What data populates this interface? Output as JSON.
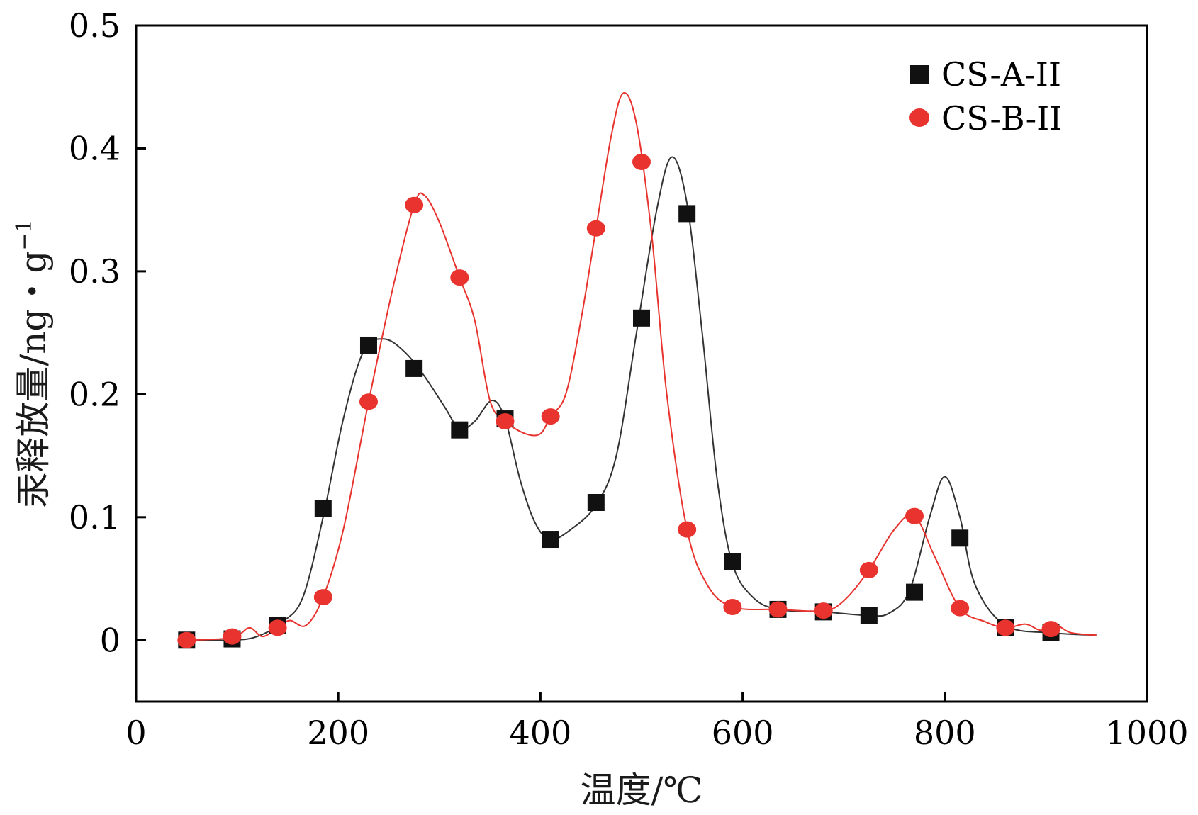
{
  "chart_data": {
    "type": "line",
    "title": "",
    "xlabel": "温度/℃",
    "ylabel_main": "汞释放量/ng・g",
    "ylabel_sup": "−1",
    "xlim": [
      0,
      1000
    ],
    "ylim": [
      -0.05,
      0.5
    ],
    "xticks": [
      0,
      200,
      400,
      600,
      800,
      1000
    ],
    "xtick_labels": [
      "0",
      "200",
      "400",
      "600",
      "800",
      "1000"
    ],
    "yticks": [
      0,
      0.1,
      0.2,
      0.3,
      0.4,
      0.5
    ],
    "ytick_labels": [
      "0",
      "0.1",
      "0.2",
      "0.3",
      "0.4",
      "0.5"
    ],
    "grid": false,
    "legend_position": "top-right",
    "series": [
      {
        "name": "CS-A-II",
        "marker": "square",
        "color": "#111111",
        "line_color": "#333333",
        "points": [
          [
            50,
            0.0
          ],
          [
            95,
            0.001
          ],
          [
            140,
            0.012
          ],
          [
            185,
            0.107
          ],
          [
            230,
            0.24
          ],
          [
            275,
            0.221
          ],
          [
            320,
            0.171
          ],
          [
            365,
            0.18
          ],
          [
            410,
            0.082
          ],
          [
            455,
            0.112
          ],
          [
            500,
            0.262
          ],
          [
            545,
            0.347
          ],
          [
            590,
            0.064
          ],
          [
            635,
            0.025
          ],
          [
            680,
            0.023
          ],
          [
            725,
            0.02
          ],
          [
            770,
            0.039
          ],
          [
            815,
            0.083
          ],
          [
            860,
            0.01
          ],
          [
            905,
            0.006
          ]
        ],
        "curve": [
          [
            50,
            0.0
          ],
          [
            95,
            0.0
          ],
          [
            120,
            0.003
          ],
          [
            145,
            0.015
          ],
          [
            165,
            0.035
          ],
          [
            185,
            0.1
          ],
          [
            205,
            0.18
          ],
          [
            225,
            0.235
          ],
          [
            245,
            0.245
          ],
          [
            265,
            0.235
          ],
          [
            285,
            0.215
          ],
          [
            305,
            0.19
          ],
          [
            320,
            0.172
          ],
          [
            335,
            0.178
          ],
          [
            352,
            0.195
          ],
          [
            365,
            0.18
          ],
          [
            380,
            0.13
          ],
          [
            395,
            0.095
          ],
          [
            410,
            0.082
          ],
          [
            430,
            0.09
          ],
          [
            455,
            0.11
          ],
          [
            475,
            0.15
          ],
          [
            495,
            0.25
          ],
          [
            515,
            0.35
          ],
          [
            530,
            0.393
          ],
          [
            545,
            0.355
          ],
          [
            560,
            0.25
          ],
          [
            575,
            0.13
          ],
          [
            590,
            0.062
          ],
          [
            610,
            0.035
          ],
          [
            635,
            0.025
          ],
          [
            680,
            0.023
          ],
          [
            725,
            0.02
          ],
          [
            745,
            0.022
          ],
          [
            765,
            0.04
          ],
          [
            785,
            0.1
          ],
          [
            800,
            0.133
          ],
          [
            815,
            0.1
          ],
          [
            830,
            0.045
          ],
          [
            860,
            0.012
          ],
          [
            905,
            0.006
          ],
          [
            950,
            0.004
          ]
        ]
      },
      {
        "name": "CS-B-II",
        "marker": "circle",
        "color": "#e8332e",
        "line_color": "#e8332e",
        "points": [
          [
            50,
            0.0
          ],
          [
            95,
            0.003
          ],
          [
            140,
            0.01
          ],
          [
            185,
            0.035
          ],
          [
            230,
            0.194
          ],
          [
            275,
            0.354
          ],
          [
            320,
            0.295
          ],
          [
            365,
            0.178
          ],
          [
            410,
            0.182
          ],
          [
            455,
            0.335
          ],
          [
            500,
            0.389
          ],
          [
            545,
            0.09
          ],
          [
            590,
            0.027
          ],
          [
            635,
            0.025
          ],
          [
            680,
            0.024
          ],
          [
            725,
            0.057
          ],
          [
            770,
            0.101
          ],
          [
            815,
            0.026
          ],
          [
            860,
            0.01
          ],
          [
            905,
            0.009
          ]
        ],
        "curve": [
          [
            50,
            0.0
          ],
          [
            95,
            0.002
          ],
          [
            112,
            0.01
          ],
          [
            125,
            0.003
          ],
          [
            140,
            0.01
          ],
          [
            152,
            0.016
          ],
          [
            168,
            0.012
          ],
          [
            185,
            0.035
          ],
          [
            205,
            0.09
          ],
          [
            230,
            0.194
          ],
          [
            255,
            0.29
          ],
          [
            275,
            0.354
          ],
          [
            285,
            0.362
          ],
          [
            300,
            0.34
          ],
          [
            320,
            0.295
          ],
          [
            335,
            0.26
          ],
          [
            350,
            0.195
          ],
          [
            365,
            0.178
          ],
          [
            385,
            0.168
          ],
          [
            400,
            0.168
          ],
          [
            410,
            0.182
          ],
          [
            425,
            0.2
          ],
          [
            440,
            0.26
          ],
          [
            455,
            0.335
          ],
          [
            470,
            0.41
          ],
          [
            482,
            0.445
          ],
          [
            495,
            0.42
          ],
          [
            510,
            0.33
          ],
          [
            525,
            0.2
          ],
          [
            545,
            0.09
          ],
          [
            565,
            0.045
          ],
          [
            590,
            0.027
          ],
          [
            635,
            0.025
          ],
          [
            680,
            0.024
          ],
          [
            700,
            0.032
          ],
          [
            725,
            0.057
          ],
          [
            750,
            0.09
          ],
          [
            770,
            0.101
          ],
          [
            790,
            0.068
          ],
          [
            815,
            0.026
          ],
          [
            840,
            0.015
          ],
          [
            860,
            0.01
          ],
          [
            880,
            0.013
          ],
          [
            895,
            0.008
          ],
          [
            910,
            0.012
          ],
          [
            925,
            0.006
          ],
          [
            950,
            0.004
          ]
        ]
      }
    ]
  }
}
